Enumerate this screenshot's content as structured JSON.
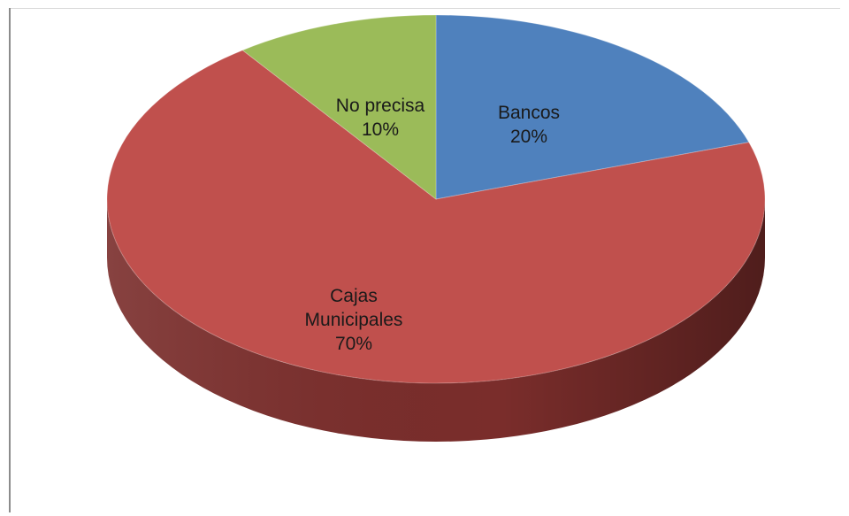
{
  "chart_data": {
    "type": "pie",
    "title": "",
    "three_d": true,
    "slices": [
      {
        "label_lines": [
          "Bancos"
        ],
        "value": 20,
        "value_label": "20%",
        "color": "#4f81bd",
        "side_color": "#2f4f78"
      },
      {
        "label_lines": [
          "Cajas",
          "Municipales"
        ],
        "value": 70,
        "value_label": "70%",
        "color": "#c0504d",
        "side_color": "#7a2d2b"
      },
      {
        "label_lines": [
          "No precisa"
        ],
        "value": 10,
        "value_label": "10%",
        "color": "#9bbb59",
        "side_color": "#63783a"
      }
    ]
  }
}
